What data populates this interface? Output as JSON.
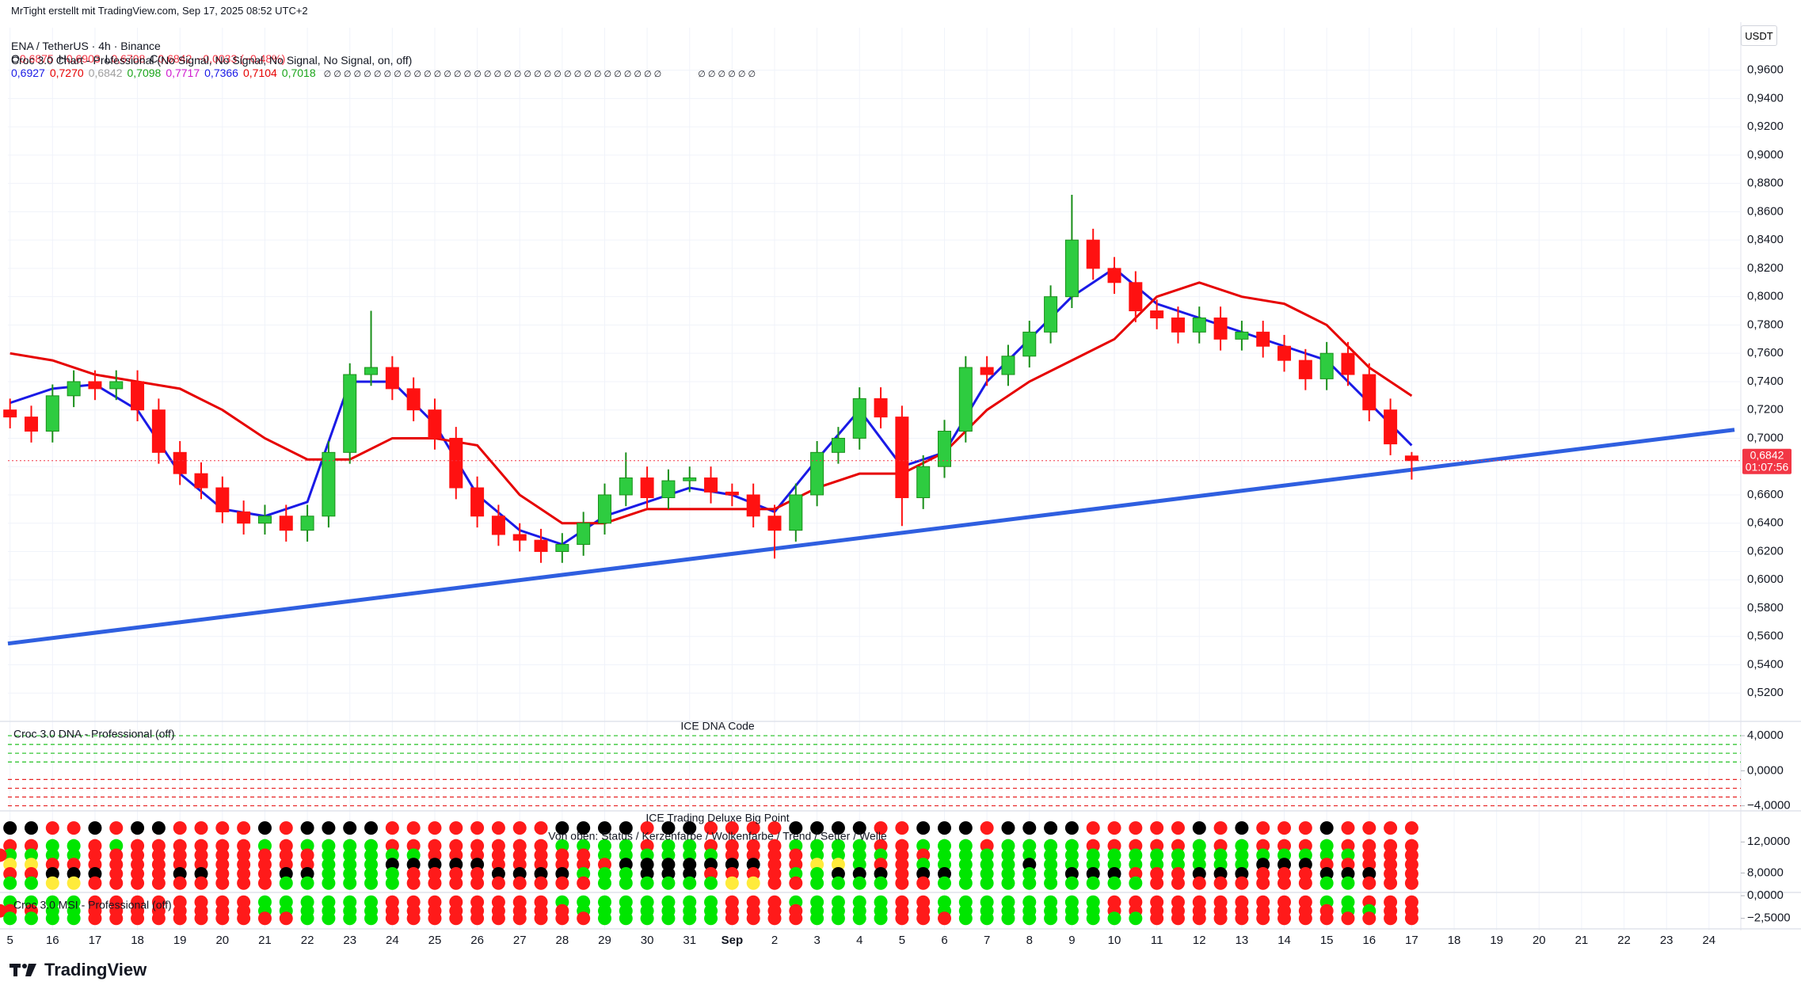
{
  "header": {
    "credit": "MrTight erstellt mit TradingView.com, Sep 17, 2025 08:52 UTC+2",
    "symbol": "ENA / TetherUS · 4h · Binance",
    "ohlc": [
      {
        "label": "O",
        "value": "0,6875"
      },
      {
        "label": "H",
        "value": "0,6903"
      },
      {
        "label": "L",
        "value": "0,6708"
      },
      {
        "label": "C",
        "value": "0,6842"
      }
    ],
    "change": "−0,0033 (−0,48%)",
    "indicator": "Croc 3.0 Chart - Professional (No Signal, No Signal, No Signal, No Signal, on, off)",
    "indicator_values": [
      {
        "text": "0,6927",
        "color": "#1a1ae6"
      },
      {
        "text": "0,7270",
        "color": "#e60000"
      },
      {
        "text": "0,6842",
        "color": "#a0a0a0"
      },
      {
        "text": "0,7098",
        "color": "#1aa51a"
      },
      {
        "text": "0,7717",
        "color": "#d01ad0"
      },
      {
        "text": "0,7366",
        "color": "#1a1ae6"
      },
      {
        "text": "0,7104",
        "color": "#e60000"
      },
      {
        "text": "0,7018",
        "color": "#1aa51a"
      }
    ],
    "indicator_flags": [
      "∅ ∅ ∅ ∅ ∅ ∅ ∅ ∅ ∅ ∅ ∅ ∅ ∅ ∅ ∅ ∅ ∅ ∅ ∅ ∅ ∅ ∅ ∅ ∅ ∅ ∅ ∅ ∅ ∅ ∅ ∅ ∅ ∅ ∅",
      "∅ ∅ ∅ ∅ ∅ ∅"
    ]
  },
  "currency": "USDT",
  "countdown": "01:07:56",
  "brand": "TradingView",
  "chart_data": [
    {
      "type": "candlestick",
      "grid": true,
      "up_color": "#2ecc40",
      "down_color": "#ff1111",
      "x": [
        0,
        0.5,
        1,
        1.5,
        2,
        2.5,
        3,
        3.5,
        4,
        4.5,
        5,
        5.5,
        6,
        6.5,
        7,
        7.5,
        8,
        8.5,
        9,
        9.5,
        10,
        10.5,
        11,
        11.5,
        12,
        12.5,
        13,
        13.5,
        14,
        14.5,
        15,
        15.5,
        16,
        16.5,
        17,
        17.5,
        18,
        18.5,
        19,
        19.5,
        20,
        20.5,
        21,
        21.5,
        22,
        22.5,
        23,
        23.5,
        24,
        24.5,
        25,
        25.5,
        26,
        26.5,
        27,
        27.5,
        28,
        28.5,
        29,
        29.5,
        30,
        30.5,
        31,
        31.5,
        32,
        32.5,
        33
      ],
      "open": [
        0.72,
        0.715,
        0.705,
        0.73,
        0.74,
        0.735,
        0.74,
        0.72,
        0.69,
        0.675,
        0.665,
        0.648,
        0.64,
        0.645,
        0.635,
        0.645,
        0.69,
        0.745,
        0.75,
        0.735,
        0.72,
        0.7,
        0.665,
        0.645,
        0.632,
        0.628,
        0.62,
        0.625,
        0.64,
        0.66,
        0.672,
        0.658,
        0.67,
        0.672,
        0.662,
        0.66,
        0.645,
        0.635,
        0.66,
        0.69,
        0.7,
        0.728,
        0.715,
        0.658,
        0.68,
        0.705,
        0.75,
        0.745,
        0.758,
        0.775,
        0.8,
        0.84,
        0.82,
        0.81,
        0.79,
        0.785,
        0.775,
        0.785,
        0.77,
        0.775,
        0.765,
        0.755,
        0.742,
        0.76,
        0.745,
        0.72,
        0.6875
      ],
      "high": [
        0.728,
        0.723,
        0.738,
        0.748,
        0.748,
        0.748,
        0.748,
        0.728,
        0.698,
        0.683,
        0.673,
        0.656,
        0.653,
        0.653,
        0.653,
        0.698,
        0.753,
        0.79,
        0.758,
        0.743,
        0.728,
        0.708,
        0.673,
        0.653,
        0.64,
        0.636,
        0.633,
        0.648,
        0.668,
        0.69,
        0.68,
        0.678,
        0.68,
        0.68,
        0.668,
        0.668,
        0.653,
        0.668,
        0.698,
        0.708,
        0.736,
        0.736,
        0.723,
        0.688,
        0.713,
        0.758,
        0.758,
        0.766,
        0.783,
        0.808,
        0.872,
        0.848,
        0.828,
        0.818,
        0.798,
        0.793,
        0.793,
        0.793,
        0.783,
        0.783,
        0.773,
        0.763,
        0.768,
        0.768,
        0.753,
        0.728,
        0.6903
      ],
      "low": [
        0.707,
        0.697,
        0.697,
        0.722,
        0.727,
        0.727,
        0.712,
        0.682,
        0.667,
        0.657,
        0.64,
        0.632,
        0.632,
        0.627,
        0.627,
        0.637,
        0.682,
        0.737,
        0.727,
        0.712,
        0.692,
        0.657,
        0.637,
        0.624,
        0.62,
        0.612,
        0.612,
        0.617,
        0.632,
        0.652,
        0.65,
        0.65,
        0.662,
        0.654,
        0.652,
        0.637,
        0.615,
        0.627,
        0.652,
        0.682,
        0.692,
        0.707,
        0.638,
        0.65,
        0.672,
        0.697,
        0.737,
        0.737,
        0.75,
        0.767,
        0.792,
        0.812,
        0.802,
        0.782,
        0.777,
        0.767,
        0.767,
        0.762,
        0.762,
        0.757,
        0.747,
        0.734,
        0.734,
        0.737,
        0.712,
        0.688,
        0.6708
      ],
      "close": [
        0.715,
        0.705,
        0.73,
        0.74,
        0.735,
        0.74,
        0.72,
        0.69,
        0.675,
        0.665,
        0.648,
        0.64,
        0.645,
        0.635,
        0.645,
        0.69,
        0.745,
        0.75,
        0.735,
        0.72,
        0.7,
        0.665,
        0.645,
        0.632,
        0.628,
        0.62,
        0.625,
        0.64,
        0.66,
        0.672,
        0.658,
        0.67,
        0.672,
        0.662,
        0.66,
        0.645,
        0.635,
        0.66,
        0.69,
        0.7,
        0.728,
        0.715,
        0.658,
        0.68,
        0.705,
        0.75,
        0.745,
        0.758,
        0.775,
        0.8,
        0.84,
        0.82,
        0.81,
        0.79,
        0.785,
        0.775,
        0.785,
        0.77,
        0.775,
        0.765,
        0.755,
        0.742,
        0.76,
        0.745,
        0.72,
        0.696,
        0.6842
      ],
      "lines": [
        {
          "color": "#1a1ae6",
          "x": [
            0,
            1,
            2,
            3,
            4,
            5,
            6,
            7,
            8,
            9,
            10,
            11,
            12,
            13,
            14,
            15,
            16,
            17,
            18,
            19,
            20,
            21,
            22,
            23,
            24,
            25,
            26,
            27,
            28,
            29,
            30,
            31,
            32,
            33
          ],
          "values": [
            0.725,
            0.735,
            0.738,
            0.72,
            0.675,
            0.65,
            0.645,
            0.655,
            0.74,
            0.74,
            0.71,
            0.66,
            0.635,
            0.625,
            0.645,
            0.655,
            0.665,
            0.66,
            0.648,
            0.685,
            0.72,
            0.68,
            0.69,
            0.74,
            0.77,
            0.8,
            0.82,
            0.795,
            0.785,
            0.775,
            0.765,
            0.755,
            0.725,
            0.695
          ]
        },
        {
          "color": "#e60000",
          "x": [
            0,
            1,
            2,
            3,
            4,
            5,
            6,
            7,
            8,
            9,
            10,
            11,
            12,
            13,
            14,
            15,
            16,
            17,
            18,
            19,
            20,
            21,
            22,
            23,
            24,
            25,
            26,
            27,
            28,
            29,
            30,
            31,
            32,
            33
          ],
          "values": [
            0.76,
            0.755,
            0.745,
            0.74,
            0.735,
            0.72,
            0.7,
            0.685,
            0.685,
            0.7,
            0.7,
            0.695,
            0.66,
            0.64,
            0.64,
            0.65,
            0.65,
            0.65,
            0.65,
            0.665,
            0.675,
            0.675,
            0.69,
            0.72,
            0.74,
            0.755,
            0.77,
            0.8,
            0.81,
            0.8,
            0.795,
            0.78,
            0.75,
            0.73
          ]
        }
      ],
      "trendline": {
        "color": "#2f5fe0",
        "x": [
          -0.05,
          40.6
        ],
        "values": [
          0.555,
          0.706
        ]
      },
      "last_price": 0.6842,
      "last_price_label": "0,6842",
      "last_price_color": "#f23645",
      "xlim": [
        -0.05,
        40.6
      ],
      "xticks": [
        {
          "value": 0,
          "label": "5"
        },
        {
          "value": 1,
          "label": "16"
        },
        {
          "value": 2,
          "label": "17"
        },
        {
          "value": 3,
          "label": "18"
        },
        {
          "value": 4,
          "label": "19"
        },
        {
          "value": 5,
          "label": "20"
        },
        {
          "value": 6,
          "label": "21"
        },
        {
          "value": 7,
          "label": "22"
        },
        {
          "value": 8,
          "label": "23"
        },
        {
          "value": 9,
          "label": "24"
        },
        {
          "value": 10,
          "label": "25"
        },
        {
          "value": 11,
          "label": "26"
        },
        {
          "value": 12,
          "label": "27"
        },
        {
          "value": 13,
          "label": "28"
        },
        {
          "value": 14,
          "label": "29"
        },
        {
          "value": 15,
          "label": "30"
        },
        {
          "value": 16,
          "label": "31"
        },
        {
          "value": 17,
          "label": "Sep"
        },
        {
          "value": 18,
          "label": "2"
        },
        {
          "value": 19,
          "label": "3"
        },
        {
          "value": 20,
          "label": "4"
        },
        {
          "value": 21,
          "label": "5"
        },
        {
          "value": 22,
          "label": "6"
        },
        {
          "value": 23,
          "label": "7"
        },
        {
          "value": 24,
          "label": "8"
        },
        {
          "value": 25,
          "label": "9"
        },
        {
          "value": 26,
          "label": "10"
        },
        {
          "value": 27,
          "label": "11"
        },
        {
          "value": 28,
          "label": "12"
        },
        {
          "value": 29,
          "label": "13"
        },
        {
          "value": 30,
          "label": "14"
        },
        {
          "value": 31,
          "label": "15"
        },
        {
          "value": 32,
          "label": "16"
        },
        {
          "value": 33,
          "label": "17"
        },
        {
          "value": 34,
          "label": "18"
        },
        {
          "value": 35,
          "label": "19"
        },
        {
          "value": 36,
          "label": "20"
        },
        {
          "value": 37,
          "label": "21"
        },
        {
          "value": 38,
          "label": "22"
        },
        {
          "value": 39,
          "label": "23"
        },
        {
          "value": 40,
          "label": "24"
        }
      ],
      "ylim": [
        0.5,
        0.99
      ],
      "yticks": [
        {
          "value": 0.52,
          "label": "0,5200"
        },
        {
          "value": 0.54,
          "label": "0,5400"
        },
        {
          "value": 0.56,
          "label": "0,5600"
        },
        {
          "value": 0.58,
          "label": "0,5800"
        },
        {
          "value": 0.6,
          "label": "0,6000"
        },
        {
          "value": 0.62,
          "label": "0,6200"
        },
        {
          "value": 0.64,
          "label": "0,6400"
        },
        {
          "value": 0.66,
          "label": "0,6600"
        },
        {
          "value": 0.68,
          "label": "0,6800"
        },
        {
          "value": 0.7,
          "label": "0,7000"
        },
        {
          "value": 0.72,
          "label": "0,7200"
        },
        {
          "value": 0.74,
          "label": "0,7400"
        },
        {
          "value": 0.76,
          "label": "0,7600"
        },
        {
          "value": 0.78,
          "label": "0,7800"
        },
        {
          "value": 0.8,
          "label": "0,8000"
        },
        {
          "value": 0.82,
          "label": "0,8200"
        },
        {
          "value": 0.84,
          "label": "0,8400"
        },
        {
          "value": 0.86,
          "label": "0,8600"
        },
        {
          "value": 0.88,
          "label": "0,8800"
        },
        {
          "value": 0.9,
          "label": "0,9000"
        },
        {
          "value": 0.92,
          "label": "0,9200"
        },
        {
          "value": 0.94,
          "label": "0,9400"
        },
        {
          "value": 0.96,
          "label": "0,9600"
        }
      ]
    },
    {
      "type": "levels",
      "title": "ICE DNA Code",
      "label": "Croc 3.0 DNA - Professional (off)",
      "levels": [
        4,
        3,
        2,
        1,
        -1,
        -2,
        -3,
        -4
      ],
      "level_colors": [
        "#22c022",
        "#22c022",
        "#22c022",
        "#22c022",
        "#e62222",
        "#e62222",
        "#e62222",
        "#e62222"
      ],
      "ylim": [
        -4.4,
        5.45
      ],
      "yticks": [
        {
          "value": 4,
          "label": "4,0000"
        },
        {
          "value": 0,
          "label": "0,0000"
        },
        {
          "value": -4,
          "label": "−4,0000"
        }
      ]
    },
    {
      "type": "dots",
      "title": "ICE Trading Deluxe Big Point",
      "subtitle": "Von oben: Status / Kerzenfarbe / Wolkenfarbe / Trend / Setter / Welle",
      "state_colors": {
        "g": "#00e600",
        "r": "#ff1a1a",
        "k": "#000000",
        "y": "#ffeb3b"
      },
      "row_values": [
        13.8,
        11.5,
        10.3,
        9.1,
        7.9,
        6.7
      ],
      "rows": [
        "kkrrkrkkrrrrkrkkkkrrrrrrrrkkkkrkkrrrrkkkkrrkkkrkkkkrrrrrkrkrrrkrrrr",
        "rrggrgrrrrrrgrggggrrrrrrrrggggrggrrrrggggrrgggrggggrrrrrgrgrrrgrrrr",
        "ggggrrrrrrrrrrrgggggrrrrrrrrggggggrrrrggggrrggggggggggggggggggggrrrr",
        "yyrrrrrrrrrrrrrgggkkkkkrrrrrrkkkkkkkrryygrrgggggkggggggggggkkkrrrrr",
        "rrkkkrrrkkrrrkkggggrrrrkkkkgggkkkrrrrggkkkrkkgggggkkkrrrkkkrrrkkkrr",
        "ggyyrrrrrrrrrggggggrrrrrrrrrggggggyyrrggggrrggggggggggrrrrrrrrggrrr"
      ],
      "ylim": [
        5.5,
        15.7
      ],
      "yticks": [
        {
          "value": 12,
          "label": "12,0000"
        },
        {
          "value": 8,
          "label": "8,0000"
        }
      ]
    },
    {
      "type": "dots",
      "label": "Croc 3.0 MSI - Professional (off)",
      "state_colors": {
        "g": "#00e600",
        "r": "#ff1a1a",
        "k": "#000000",
        "y": "#ffeb3b"
      },
      "row_values": [
        -0.71,
        -1.67,
        -2.5
      ],
      "rows": [
        "ggggrrrrrrrrggggggrrrrrrrrggggggggrrrgggggrrggggggggrrrrrrrrrrggrrr",
        "rrggrrrrrrrrggggggrrrrrrrrrgggggggrrrrggggrrggggggggrrrrrrrrrrrggrrr",
        "ggggrrrrrrrrrrggggrrrrrrrrrrggggggrrrrggggrrrgggggggggrrrrrrrrrrrrr"
      ],
      "ylim": [
        -3.57,
        0.36
      ],
      "yticks": [
        {
          "value": 0,
          "label": "0,0000"
        },
        {
          "value": -2.5,
          "label": "−2,5000"
        }
      ]
    }
  ]
}
